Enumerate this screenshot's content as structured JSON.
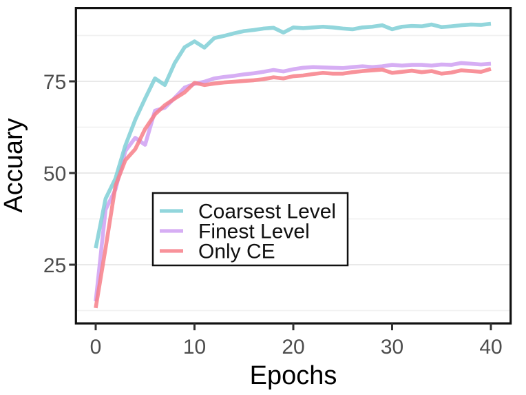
{
  "figure": {
    "background": "#FFFFFF",
    "description": "Line chart of accuracy vs training epochs for three methods"
  },
  "chart_data": {
    "type": "line",
    "title": "",
    "xlabel": "Epochs",
    "ylabel": "Accuary",
    "x_ticks": [
      0,
      10,
      20,
      30,
      40
    ],
    "y_ticks": [
      25,
      50,
      75
    ],
    "y_minor_gridlines": [
      12.5,
      37.5,
      62.5,
      87.5
    ],
    "xlim": [
      -2,
      42
    ],
    "ylim": [
      9,
      95
    ],
    "grid": "horizontal major and minor gridlines only, light gray on white",
    "legend_position": "inside-bottom-left, black-bordered white box",
    "x": [
      0,
      1,
      2,
      3,
      4,
      5,
      6,
      7,
      8,
      9,
      10,
      11,
      12,
      13,
      14,
      15,
      16,
      17,
      18,
      19,
      20,
      21,
      22,
      23,
      24,
      25,
      26,
      27,
      28,
      29,
      30,
      31,
      32,
      33,
      34,
      35,
      36,
      37,
      38,
      39,
      40
    ],
    "series": [
      {
        "name": "Coarsest Level",
        "color": "#7FCFD6",
        "values": [
          29.5,
          43,
          48.5,
          57.5,
          64.5,
          70.3,
          75.8,
          74,
          80,
          84.3,
          85.9,
          84.2,
          86.8,
          87.4,
          88.1,
          88.7,
          89,
          89.4,
          89.6,
          88.3,
          89.7,
          89.5,
          89.7,
          89.9,
          89.7,
          89.4,
          89.2,
          89.7,
          89.9,
          90.3,
          89.2,
          89.9,
          90.1,
          90,
          90.5,
          89.8,
          90,
          90.3,
          90.5,
          90.4,
          90.7
        ]
      },
      {
        "name": "Finest Level",
        "color": "#CFA0F2",
        "values": [
          15,
          40,
          45.5,
          56,
          59.6,
          57.7,
          67,
          67.8,
          70.5,
          73.3,
          74.3,
          74.9,
          75.8,
          76.2,
          76.5,
          76.9,
          77.2,
          77.6,
          78.1,
          77.7,
          78.3,
          78.7,
          78.9,
          78.8,
          78.7,
          78.6,
          78.9,
          79.1,
          78.9,
          79.1,
          79.5,
          79.3,
          79.5,
          79.5,
          79.3,
          79.6,
          79.5,
          80,
          79.8,
          79.6,
          79.8
        ]
      },
      {
        "name": "Only CE",
        "color": "#F77F88",
        "values": [
          13.2,
          29.5,
          46.5,
          53.5,
          56.5,
          62,
          66,
          68.5,
          70.3,
          72,
          74.6,
          74,
          74.4,
          74.7,
          74.9,
          75.1,
          75.3,
          75.6,
          76.1,
          75.8,
          76.4,
          76.6,
          77,
          77.3,
          77.1,
          77.1,
          77.5,
          77.8,
          78,
          78.2,
          77.3,
          77.6,
          77.9,
          77.5,
          77.8,
          77.1,
          77.4,
          78,
          77.8,
          77.6,
          78.4
        ]
      }
    ],
    "style": {
      "line_width": 5.6,
      "line_opacity": 0.85,
      "grid_major_color": "#E9E9E9",
      "grid_minor_color": "#F1F1F1",
      "axis_text_color": "#4D4D4D",
      "axis_title_color": "#000000",
      "panel_border_color": "#111111",
      "tick_mark_color": "#333333",
      "legend_border_color": "#111111",
      "legend_background": "#FFFFFF"
    }
  }
}
